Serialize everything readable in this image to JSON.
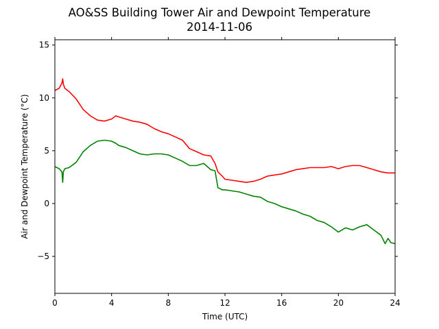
{
  "chart_data": {
    "type": "line",
    "title": "AO&SS Building Tower Air and Dewpoint Temperature",
    "subtitle": "2014-11-06",
    "xlabel": "Time (UTC)",
    "ylabel": "Air and Dewpoint Temperature (°C)",
    "xlim": [
      0,
      24
    ],
    "ylim": [
      -8.5,
      15.5
    ],
    "xticks": [
      0,
      4,
      8,
      12,
      16,
      20,
      24
    ],
    "xtick_labels": [
      "0",
      "4",
      "8",
      "12",
      "16",
      "20",
      "24"
    ],
    "yticks": [
      -5,
      0,
      5,
      10,
      15
    ],
    "ytick_labels": [
      "−5",
      "0",
      "5",
      "10",
      "15"
    ],
    "grid": false,
    "series": [
      {
        "color": "#ff0000",
        "x": [
          0,
          0.3,
          0.5,
          0.55,
          0.6,
          0.7,
          1.0,
          1.5,
          2.0,
          2.5,
          3.0,
          3.5,
          4.0,
          4.3,
          4.5,
          5.0,
          5.5,
          6.0,
          6.5,
          7.0,
          7.5,
          8.0,
          8.5,
          9.0,
          9.5,
          10.0,
          10.5,
          11.0,
          11.3,
          11.5,
          11.8,
          12.0,
          12.5,
          13.0,
          13.5,
          14.0,
          14.5,
          15.0,
          15.5,
          16.0,
          16.5,
          17.0,
          17.5,
          18.0,
          18.5,
          19.0,
          19.5,
          20.0,
          20.5,
          21.0,
          21.5,
          22.0,
          22.5,
          23.0,
          23.5,
          24.0
        ],
        "y": [
          10.7,
          10.9,
          11.4,
          11.8,
          11.3,
          10.9,
          10.6,
          9.9,
          8.9,
          8.3,
          7.9,
          7.8,
          8.0,
          8.3,
          8.2,
          8.0,
          7.8,
          7.7,
          7.5,
          7.1,
          6.8,
          6.6,
          6.3,
          6.0,
          5.2,
          4.9,
          4.6,
          4.5,
          3.8,
          3.0,
          2.6,
          2.3,
          2.2,
          2.1,
          2.0,
          2.1,
          2.3,
          2.6,
          2.7,
          2.8,
          3.0,
          3.2,
          3.3,
          3.4,
          3.4,
          3.4,
          3.5,
          3.3,
          3.5,
          3.6,
          3.6,
          3.4,
          3.2,
          3.0,
          2.9,
          2.9
        ]
      },
      {
        "color": "#008000",
        "x": [
          0,
          0.3,
          0.5,
          0.55,
          0.6,
          0.7,
          1.0,
          1.5,
          2.0,
          2.5,
          3.0,
          3.5,
          4.0,
          4.3,
          4.5,
          5.0,
          5.5,
          6.0,
          6.5,
          7.0,
          7.5,
          8.0,
          8.5,
          9.0,
          9.5,
          10.0,
          10.5,
          11.0,
          11.3,
          11.5,
          11.8,
          12.0,
          12.5,
          13.0,
          13.5,
          14.0,
          14.5,
          15.0,
          15.5,
          16.0,
          16.5,
          17.0,
          17.5,
          18.0,
          18.5,
          19.0,
          19.5,
          20.0,
          20.5,
          21.0,
          21.5,
          22.0,
          22.5,
          23.0,
          23.3,
          23.5,
          23.7,
          24.0
        ],
        "y": [
          3.5,
          3.3,
          3.0,
          2.0,
          3.0,
          3.3,
          3.4,
          3.9,
          4.9,
          5.5,
          5.9,
          6.0,
          5.9,
          5.7,
          5.5,
          5.3,
          5.0,
          4.7,
          4.6,
          4.7,
          4.7,
          4.6,
          4.3,
          4.0,
          3.6,
          3.6,
          3.8,
          3.2,
          3.1,
          1.5,
          1.3,
          1.3,
          1.2,
          1.1,
          0.9,
          0.7,
          0.6,
          0.2,
          0.0,
          -0.3,
          -0.5,
          -0.7,
          -1.0,
          -1.2,
          -1.6,
          -1.8,
          -2.2,
          -2.7,
          -2.3,
          -2.5,
          -2.2,
          -2.0,
          -2.5,
          -3.0,
          -3.8,
          -3.3,
          -3.7,
          -3.8
        ]
      }
    ]
  }
}
